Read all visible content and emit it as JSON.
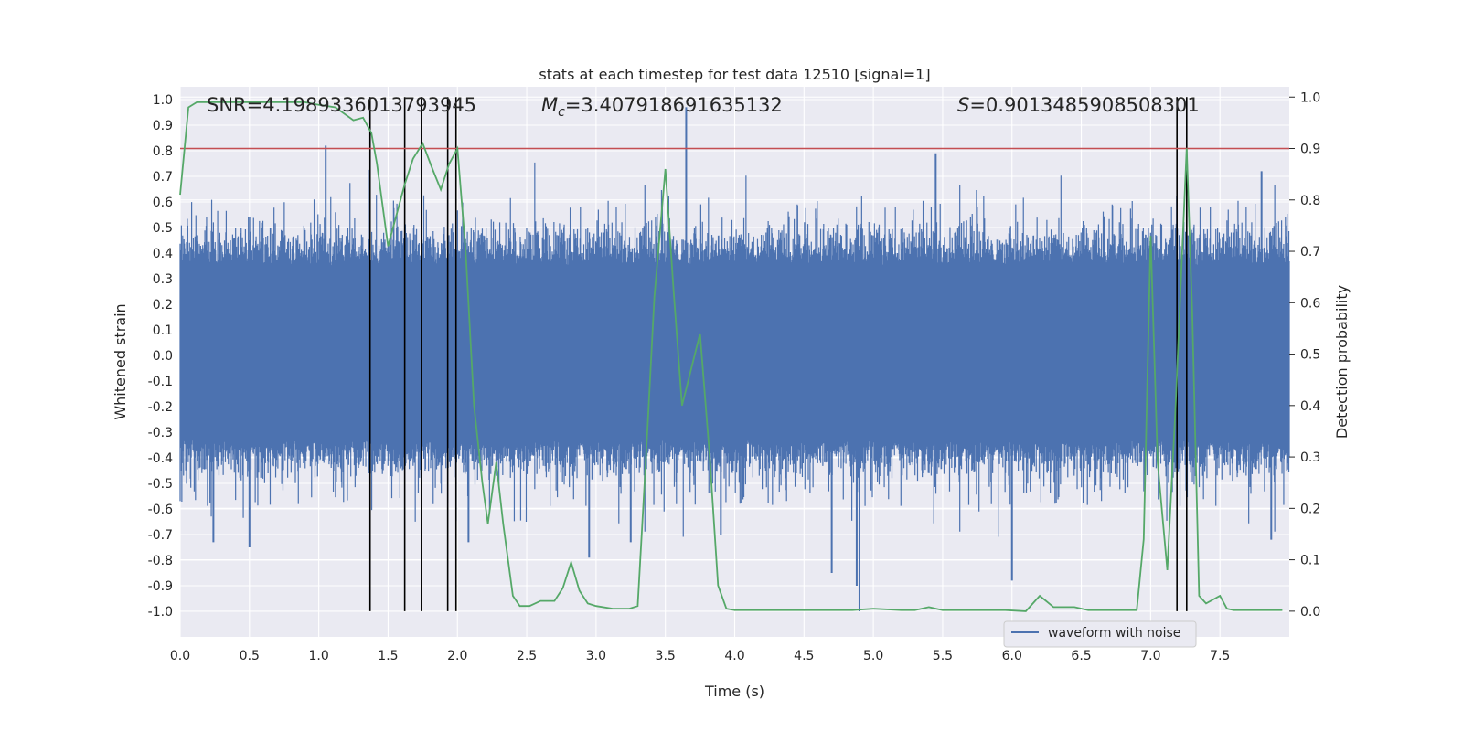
{
  "chart_data": {
    "type": "line",
    "title": "stats at each timestep for test data 12510 [signal=1]",
    "xlabel": "Time (s)",
    "ylabel_left": "Whitened strain",
    "ylabel_right": "Detection probability",
    "xlim": [
      0,
      8
    ],
    "ylim_left": [
      -1.1,
      1.05
    ],
    "ylim_right": [
      -0.05,
      1.02
    ],
    "x_ticks": [
      "0.0",
      "0.5",
      "1.0",
      "1.5",
      "2.0",
      "2.5",
      "3.0",
      "3.5",
      "4.0",
      "4.5",
      "5.0",
      "5.5",
      "6.0",
      "6.5",
      "7.0",
      "7.5"
    ],
    "x_tick_values": [
      0,
      0.5,
      1,
      1.5,
      2,
      2.5,
      3,
      3.5,
      4,
      4.5,
      5,
      5.5,
      6,
      6.5,
      7,
      7.5
    ],
    "y_left_ticks": [
      "1.0",
      "0.9",
      "0.8",
      "0.7",
      "0.6",
      "0.5",
      "0.4",
      "0.3",
      "0.2",
      "0.1",
      "0.0",
      "-0.1",
      "-0.2",
      "-0.3",
      "-0.4",
      "-0.5",
      "-0.6",
      "-0.7",
      "-0.8",
      "-0.9",
      "-1.0"
    ],
    "y_left_tick_values": [
      1.0,
      0.9,
      0.8,
      0.7,
      0.6,
      0.5,
      0.4,
      0.3,
      0.2,
      0.1,
      0.0,
      -0.1,
      -0.2,
      -0.3,
      -0.4,
      -0.5,
      -0.6,
      -0.7,
      -0.8,
      -0.9,
      -1.0
    ],
    "y_right_ticks": [
      "1.0",
      "0.9",
      "0.8",
      "0.7",
      "0.6",
      "0.5",
      "0.4",
      "0.3",
      "0.2",
      "0.1",
      "0.0"
    ],
    "y_right_tick_values": [
      1.0,
      0.9,
      0.8,
      0.7,
      0.6,
      0.5,
      0.4,
      0.3,
      0.2,
      0.1,
      0.0
    ],
    "stats": {
      "snr": "SNR=4.1989336013793945",
      "mc_symbol": "M",
      "mc_sub": "c",
      "mc_value": "=3.407918691635132",
      "s_symbol": "S",
      "s_value": "=0.9013485908508301"
    },
    "legend": {
      "label": "waveform with noise",
      "position": "lower-right"
    },
    "threshold_probability": 0.9,
    "waveform": {
      "name": "waveform with noise",
      "description_range": [
        -1.0,
        1.0
      ],
      "typical_envelope": [
        -0.42,
        0.45
      ],
      "spikes": [
        {
          "x": 1.05,
          "y": 0.82
        },
        {
          "x": 3.65,
          "y": 0.97
        },
        {
          "x": 5.45,
          "y": 0.79
        },
        {
          "x": 4.9,
          "y": -1.0
        },
        {
          "x": 4.88,
          "y": -0.9
        },
        {
          "x": 4.7,
          "y": -0.85
        },
        {
          "x": 6.0,
          "y": -0.88
        },
        {
          "x": 0.5,
          "y": -0.75
        },
        {
          "x": 0.24,
          "y": -0.73
        },
        {
          "x": 2.95,
          "y": -0.79
        },
        {
          "x": 2.08,
          "y": -0.73
        },
        {
          "x": 3.25,
          "y": -0.73
        },
        {
          "x": 7.87,
          "y": -0.72
        },
        {
          "x": 7.8,
          "y": 0.72
        },
        {
          "x": 3.9,
          "y": -0.7
        }
      ]
    },
    "series": [
      {
        "name": "detection probability",
        "color": "#55a868",
        "x": [
          0.0,
          0.06,
          0.12,
          0.25,
          0.5,
          0.75,
          0.9,
          1.0,
          1.12,
          1.25,
          1.32,
          1.38,
          1.42,
          1.5,
          1.62,
          1.68,
          1.75,
          1.82,
          1.88,
          1.94,
          2.0,
          2.06,
          2.12,
          2.18,
          2.22,
          2.28,
          2.33,
          2.4,
          2.45,
          2.52,
          2.6,
          2.7,
          2.76,
          2.82,
          2.88,
          2.94,
          3.0,
          3.12,
          3.24,
          3.3,
          3.36,
          3.42,
          3.5,
          3.56,
          3.62,
          3.75,
          3.82,
          3.88,
          3.94,
          4.0,
          4.2,
          4.5,
          4.7,
          4.85,
          5.0,
          5.2,
          5.3,
          5.4,
          5.5,
          5.6,
          5.8,
          5.95,
          6.1,
          6.2,
          6.3,
          6.45,
          6.55,
          6.65,
          6.8,
          6.9,
          6.95,
          7.0,
          7.05,
          7.12,
          7.18,
          7.22,
          7.26,
          7.3,
          7.35,
          7.4,
          7.5,
          7.55,
          7.6,
          7.68,
          7.8,
          7.95
        ],
        "values": [
          0.81,
          0.98,
          0.99,
          0.99,
          0.99,
          0.99,
          0.99,
          0.985,
          0.98,
          0.955,
          0.96,
          0.93,
          0.87,
          0.71,
          0.83,
          0.88,
          0.91,
          0.86,
          0.82,
          0.87,
          0.9,
          0.7,
          0.4,
          0.25,
          0.17,
          0.29,
          0.17,
          0.03,
          0.01,
          0.01,
          0.02,
          0.02,
          0.045,
          0.095,
          0.04,
          0.015,
          0.01,
          0.005,
          0.005,
          0.01,
          0.3,
          0.61,
          0.86,
          0.62,
          0.4,
          0.54,
          0.3,
          0.05,
          0.005,
          0.002,
          0.002,
          0.002,
          0.002,
          0.002,
          0.005,
          0.002,
          0.002,
          0.008,
          0.002,
          0.002,
          0.002,
          0.002,
          0.0,
          0.03,
          0.008,
          0.008,
          0.002,
          0.002,
          0.002,
          0.002,
          0.14,
          0.73,
          0.29,
          0.08,
          0.4,
          0.65,
          0.9,
          0.58,
          0.03,
          0.015,
          0.03,
          0.005,
          0.002,
          0.002,
          0.002,
          0.002
        ]
      }
    ],
    "vertical_markers": [
      1.37,
      1.62,
      1.74,
      1.93,
      1.99,
      7.19,
      7.26
    ],
    "colors": {
      "waveform": "#4c72b0",
      "probability": "#55a868",
      "threshold": "#c44e52",
      "markers": "#000000",
      "plot_bg": "#eaeaf2",
      "grid": "#ffffff"
    }
  }
}
